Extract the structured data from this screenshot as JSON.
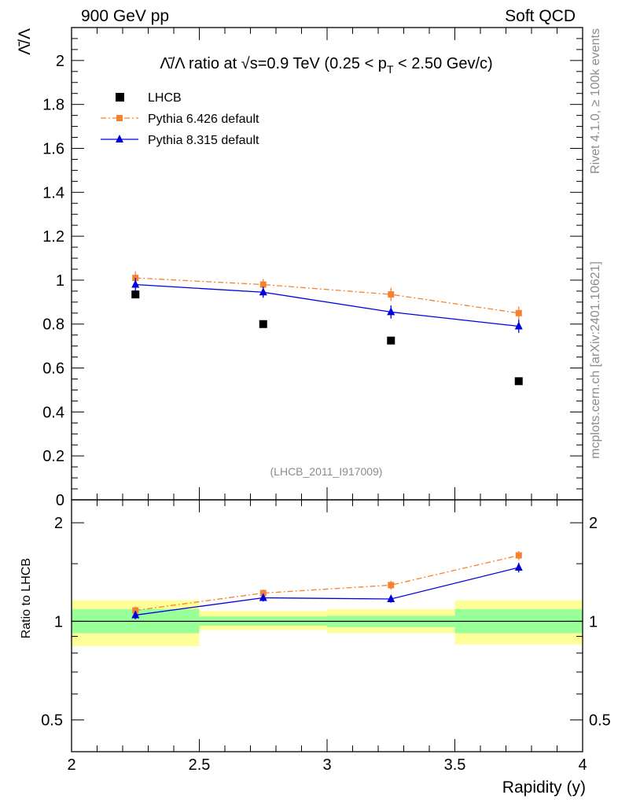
{
  "header": {
    "left": "900 GeV pp",
    "right": "Soft QCD"
  },
  "side_texts": {
    "rivet": "Rivet 4.1.0, ≥ 100k events",
    "mcplots": "mcplots.cern.ch [arXiv:2401.10621]"
  },
  "analysis_label": "(LHCB_2011_I917009)",
  "chart_data": [
    {
      "name": "main",
      "type": "scatter",
      "title_prefix": "Λ̄/Λ ratio at √s=0.9 TeV (0.25 < p",
      "title_sub": "T",
      "title_suffix": " < 2.50 Gev/c)",
      "ylabel": "Λ̄/Λ",
      "xlim": [
        2,
        4
      ],
      "ylim": [
        0,
        2.15
      ],
      "yticks": [
        "0",
        "0.2",
        "0.4",
        "0.6",
        "0.8",
        "1",
        "1.2",
        "1.4",
        "1.6",
        "1.8",
        "2"
      ],
      "series": [
        {
          "name": "LHCB",
          "color": "#000000",
          "marker": "square",
          "style": "none",
          "x": [
            2.25,
            2.75,
            3.25,
            3.75
          ],
          "y": [
            0.935,
            0.8,
            0.725,
            0.54
          ],
          "err": [
            0,
            0,
            0,
            0
          ]
        },
        {
          "name": "Pythia 6.426 default",
          "color": "#f58231",
          "marker": "square",
          "style": "dashdot",
          "x": [
            2.25,
            2.75,
            3.25,
            3.75
          ],
          "y": [
            1.01,
            0.98,
            0.935,
            0.85
          ],
          "err": [
            0.03,
            0.025,
            0.03,
            0.03
          ]
        },
        {
          "name": "Pythia 8.315 default",
          "color": "#0000dd",
          "marker": "triangle",
          "style": "solid",
          "x": [
            2.25,
            2.75,
            3.25,
            3.75
          ],
          "y": [
            0.98,
            0.945,
            0.855,
            0.79
          ],
          "err": [
            0.03,
            0.025,
            0.03,
            0.03
          ]
        }
      ]
    },
    {
      "name": "ratio",
      "type": "scatter",
      "ylabel": "Ratio to LHCB",
      "xlabel": "Rapidity (y)",
      "xlim": [
        2,
        4
      ],
      "ylim": [
        0.4,
        2.35
      ],
      "yscale": "log",
      "yticks": [
        "0.5",
        "1",
        "2"
      ],
      "xticks": [
        "2",
        "2.5",
        "3",
        "3.5",
        "4"
      ],
      "bands": [
        {
          "x": [
            2.0,
            2.5
          ],
          "inner": [
            0.92,
            1.09
          ],
          "outer": [
            0.84,
            1.16
          ]
        },
        {
          "x": [
            2.5,
            3.0
          ],
          "inner": [
            0.97,
            1.035
          ],
          "outer": [
            0.94,
            1.075
          ]
        },
        {
          "x": [
            3.0,
            3.5
          ],
          "inner": [
            0.96,
            1.04
          ],
          "outer": [
            0.92,
            1.09
          ]
        },
        {
          "x": [
            3.5,
            4.0
          ],
          "inner": [
            0.92,
            1.09
          ],
          "outer": [
            0.85,
            1.16
          ]
        }
      ],
      "series": [
        {
          "name": "Pythia 6.426 default",
          "color": "#f58231",
          "marker": "square",
          "style": "dashdot",
          "x": [
            2.25,
            2.75,
            3.25,
            3.75
          ],
          "y": [
            1.08,
            1.22,
            1.29,
            1.59
          ],
          "err": [
            0.03,
            0.03,
            0.04,
            0.05
          ]
        },
        {
          "name": "Pythia 8.315 default",
          "color": "#0000dd",
          "marker": "triangle",
          "style": "solid",
          "x": [
            2.25,
            2.75,
            3.25,
            3.75
          ],
          "y": [
            1.045,
            1.18,
            1.17,
            1.46
          ],
          "err": [
            0.03,
            0.03,
            0.03,
            0.05
          ]
        }
      ]
    }
  ],
  "colors": {
    "band_inner": "#99ff99",
    "band_outer": "#ffff99"
  }
}
